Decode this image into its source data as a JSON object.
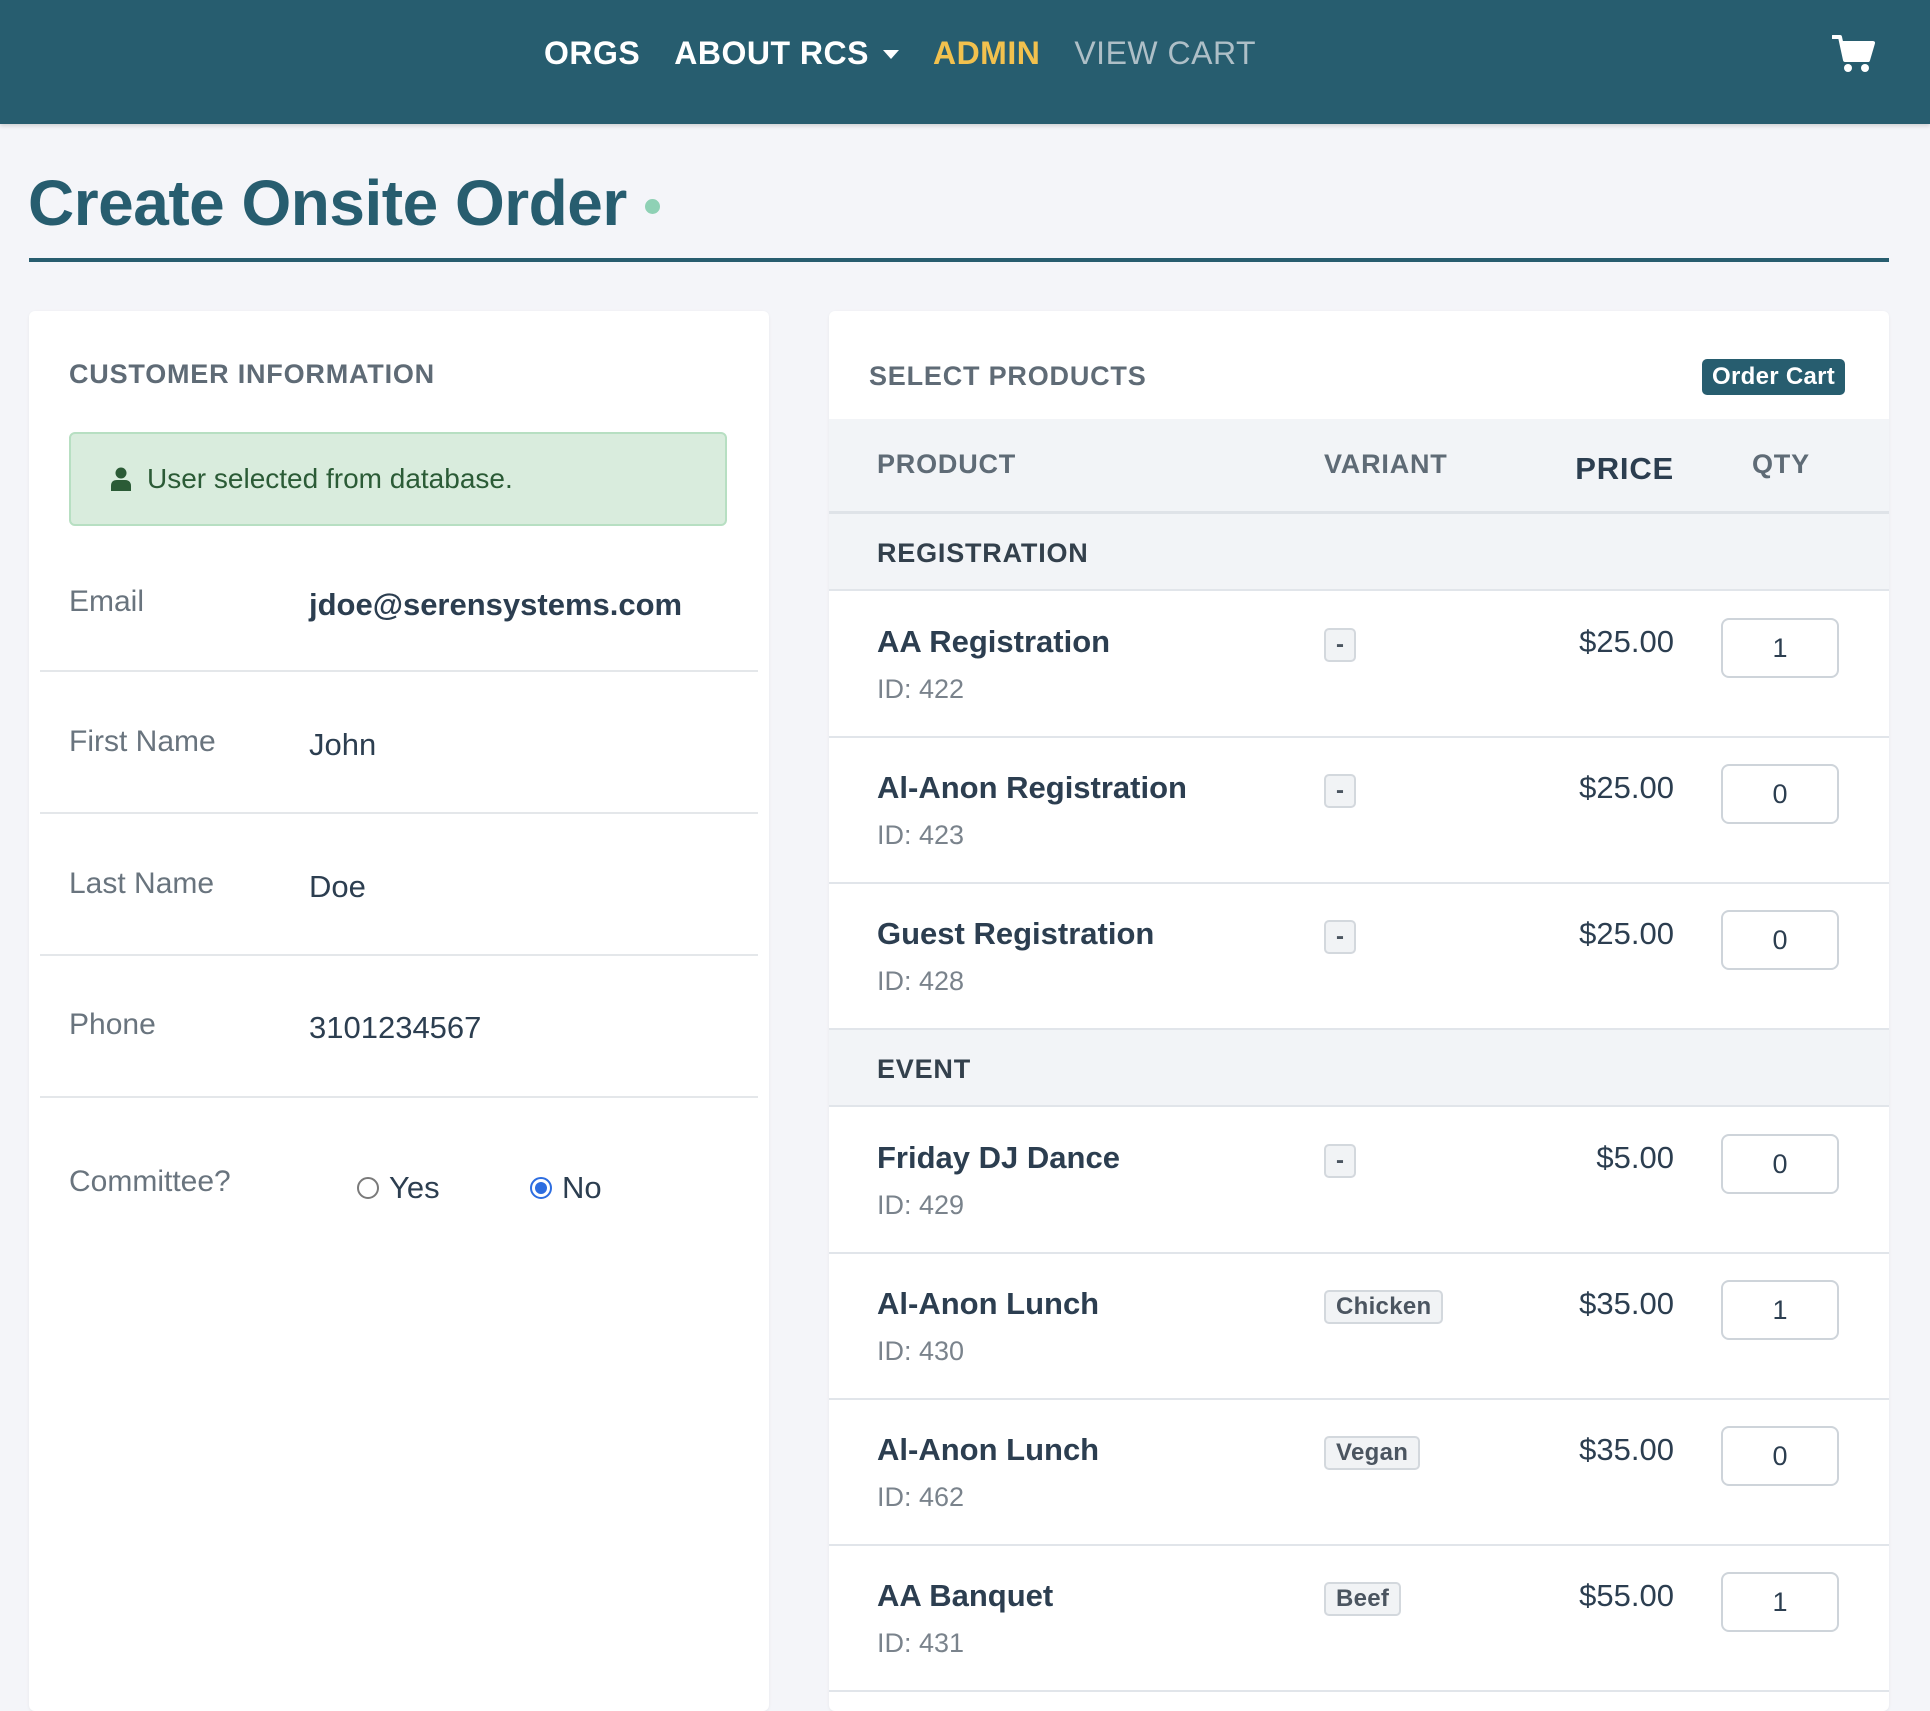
{
  "nav": {
    "links": [
      {
        "label": "ORGS"
      },
      {
        "label": "ABOUT RCS"
      },
      {
        "label": "ADMIN"
      },
      {
        "label": "VIEW CART"
      }
    ],
    "cart_icon": "shopping-cart-icon"
  },
  "page": {
    "title": "Create Onsite Order"
  },
  "customer": {
    "heading": "CUSTOMER INFORMATION",
    "alert": "User selected from database.",
    "alert_icon": "user-icon",
    "fields": [
      {
        "label": "Email",
        "value": "jdoe@serensystems.com"
      },
      {
        "label": "First Name",
        "value": "John"
      },
      {
        "label": "Last Name",
        "value": "Doe"
      },
      {
        "label": "Phone",
        "value": "3101234567"
      }
    ],
    "committee": {
      "label": "Committee?",
      "options": [
        "Yes",
        "No"
      ],
      "selected": "No"
    }
  },
  "products": {
    "heading": "SELECT PRODUCTS",
    "cart_badge": "Order Cart",
    "columns": {
      "product": "PRODUCT",
      "variant": "VARIANT",
      "price": "PRICE",
      "qty": "QTY"
    },
    "groups": [
      {
        "name": "REGISTRATION",
        "items": [
          {
            "name": "AA Registration",
            "id": "ID: 422",
            "variant": "-",
            "price": "$25.00",
            "qty": "1"
          },
          {
            "name": "Al-Anon Registration",
            "id": "ID: 423",
            "variant": "-",
            "price": "$25.00",
            "qty": "0"
          },
          {
            "name": "Guest Registration",
            "id": "ID: 428",
            "variant": "-",
            "price": "$25.00",
            "qty": "0"
          }
        ]
      },
      {
        "name": "EVENT",
        "items": [
          {
            "name": "Friday DJ Dance",
            "id": "ID: 429",
            "variant": "-",
            "price": "$5.00",
            "qty": "0"
          },
          {
            "name": "Al-Anon Lunch",
            "id": "ID: 430",
            "variant": "Chicken",
            "price": "$35.00",
            "qty": "1"
          },
          {
            "name": "Al-Anon Lunch",
            "id": "ID: 462",
            "variant": "Vegan",
            "price": "$35.00",
            "qty": "0"
          },
          {
            "name": "AA Banquet",
            "id": "ID: 431",
            "variant": "Beef",
            "price": "$55.00",
            "qty": "1"
          }
        ]
      }
    ]
  },
  "colors": {
    "nav_bg": "#275d6f",
    "nav_active": "#f2c14e",
    "alert_bg": "#d9ecdd",
    "radio_checked": "#2d6de0"
  }
}
